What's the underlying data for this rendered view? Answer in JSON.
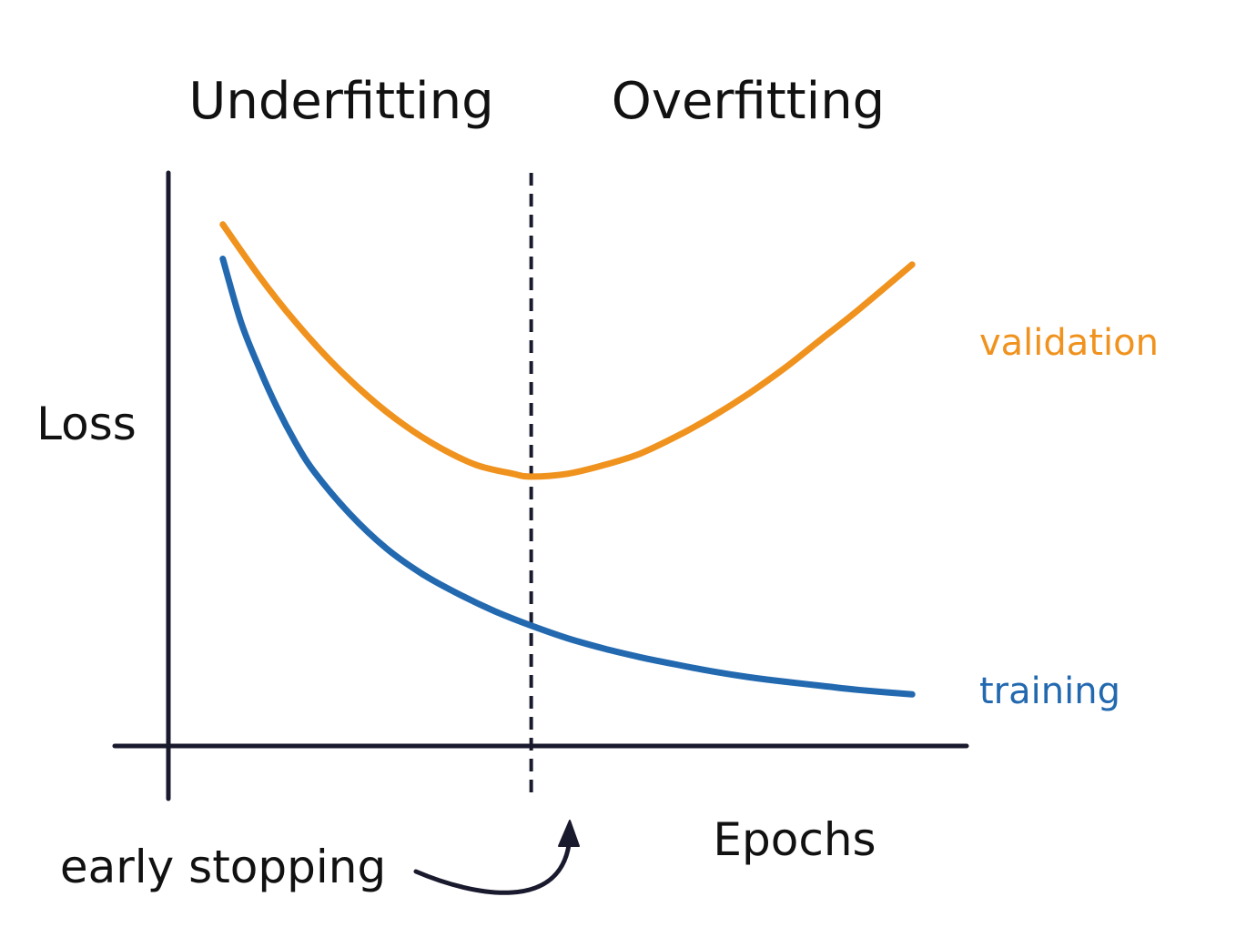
{
  "chart_data": {
    "type": "line",
    "title": "",
    "xlabel": "Epochs",
    "ylabel": "Loss",
    "regions": {
      "left": "Underfitting",
      "right": "Overfitting"
    },
    "annotation": {
      "text": "early stopping",
      "x": 10
    },
    "xlim": [
      0,
      22
    ],
    "ylim": [
      0,
      10
    ],
    "grid": false,
    "legend": "inline-right",
    "series": [
      {
        "name": "validation",
        "color": "#F0921E",
        "x": [
          1.5,
          2.5,
          3.5,
          4.5,
          5.5,
          6.5,
          7.5,
          8.5,
          9.5,
          10,
          11,
          12,
          13,
          14,
          15,
          16,
          17,
          18,
          19,
          20.5
        ],
        "y": [
          9.1,
          8.2,
          7.4,
          6.7,
          6.1,
          5.6,
          5.2,
          4.9,
          4.75,
          4.7,
          4.75,
          4.9,
          5.1,
          5.4,
          5.75,
          6.15,
          6.6,
          7.1,
          7.6,
          8.4
        ]
      },
      {
        "name": "training",
        "color": "#2369B0",
        "x": [
          1.5,
          2,
          2.5,
          3,
          3.5,
          4,
          5,
          6,
          7,
          8,
          9,
          10,
          11,
          12,
          13,
          14,
          15,
          16,
          17,
          18,
          19,
          20.5
        ],
        "y": [
          8.5,
          7.4,
          6.6,
          5.9,
          5.3,
          4.8,
          4.05,
          3.45,
          3.0,
          2.65,
          2.35,
          2.1,
          1.88,
          1.7,
          1.55,
          1.42,
          1.3,
          1.2,
          1.12,
          1.05,
          0.98,
          0.9
        ]
      }
    ],
    "colors": {
      "axis": "#1A1A2E",
      "text": "#111111"
    }
  }
}
